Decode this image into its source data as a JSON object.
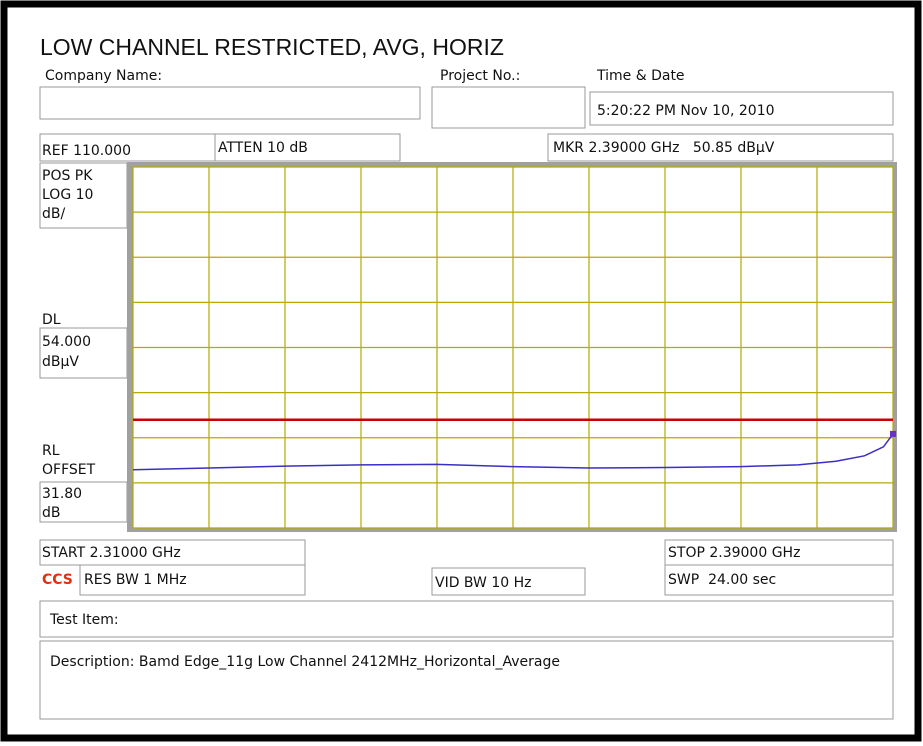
{
  "title": "LOW CHANNEL RESTRICTED, AVG, HORIZ",
  "header": {
    "company_label": "Company Name:",
    "project_label": "Project No.:",
    "time_label": "Time & Date",
    "time_value": "5:20:22 PM Nov 10, 2010"
  },
  "settings": {
    "ref": "REF 110.000",
    "atten": "ATTEN 10 dB",
    "marker": "MKR 2.39000 GHz   50.85 dBμV",
    "detector": [
      "POS PK",
      "LOG 10",
      "dB/"
    ],
    "dl_label": "DL",
    "dl_value": [
      "54.000",
      "dBμV"
    ],
    "rl_label": [
      "RL",
      "OFFSET"
    ],
    "rl_value": [
      "31.80",
      "dB"
    ],
    "start": "START 2.31000 GHz",
    "stop": "STOP 2.39000 GHz",
    "logo": "CCS",
    "res_bw": "RES BW 1 MHz",
    "vid_bw": "VID BW 10 Hz",
    "sweep": "SWP  24.00 sec"
  },
  "footer": {
    "test_item": "Test Item:",
    "description": "Description: Bamd Edge_11g Low Channel 2412MHz_Horizontal_Average"
  },
  "chart_data": {
    "type": "line",
    "x": [
      2.31,
      2.318,
      2.326,
      2.334,
      2.342,
      2.35,
      2.358,
      2.366,
      2.374,
      2.38,
      2.384,
      2.387,
      2.389,
      2.39
    ],
    "series": [
      {
        "color": "#3a2fc4",
        "values": [
          42.9,
          43.3,
          43.7,
          44.0,
          44.1,
          43.6,
          43.3,
          43.4,
          43.6,
          44.0,
          44.8,
          46.0,
          48.0,
          50.85
        ]
      }
    ],
    "xlim": [
      2.31,
      2.39
    ],
    "ylim": [
      30,
      110
    ],
    "xticks": [
      2.31,
      2.318,
      2.326,
      2.334,
      2.342,
      2.35,
      2.358,
      2.366,
      2.374,
      2.382,
      2.39
    ],
    "yticks": [
      30,
      40,
      50,
      60,
      70,
      80,
      90,
      100,
      110
    ],
    "grid": true,
    "grid_color": "#b8a800",
    "display_line": {
      "value": 54,
      "color": "#cc0000"
    },
    "marker": {
      "x": 2.39,
      "y": 50.85,
      "color": "#6a2fc4"
    }
  }
}
